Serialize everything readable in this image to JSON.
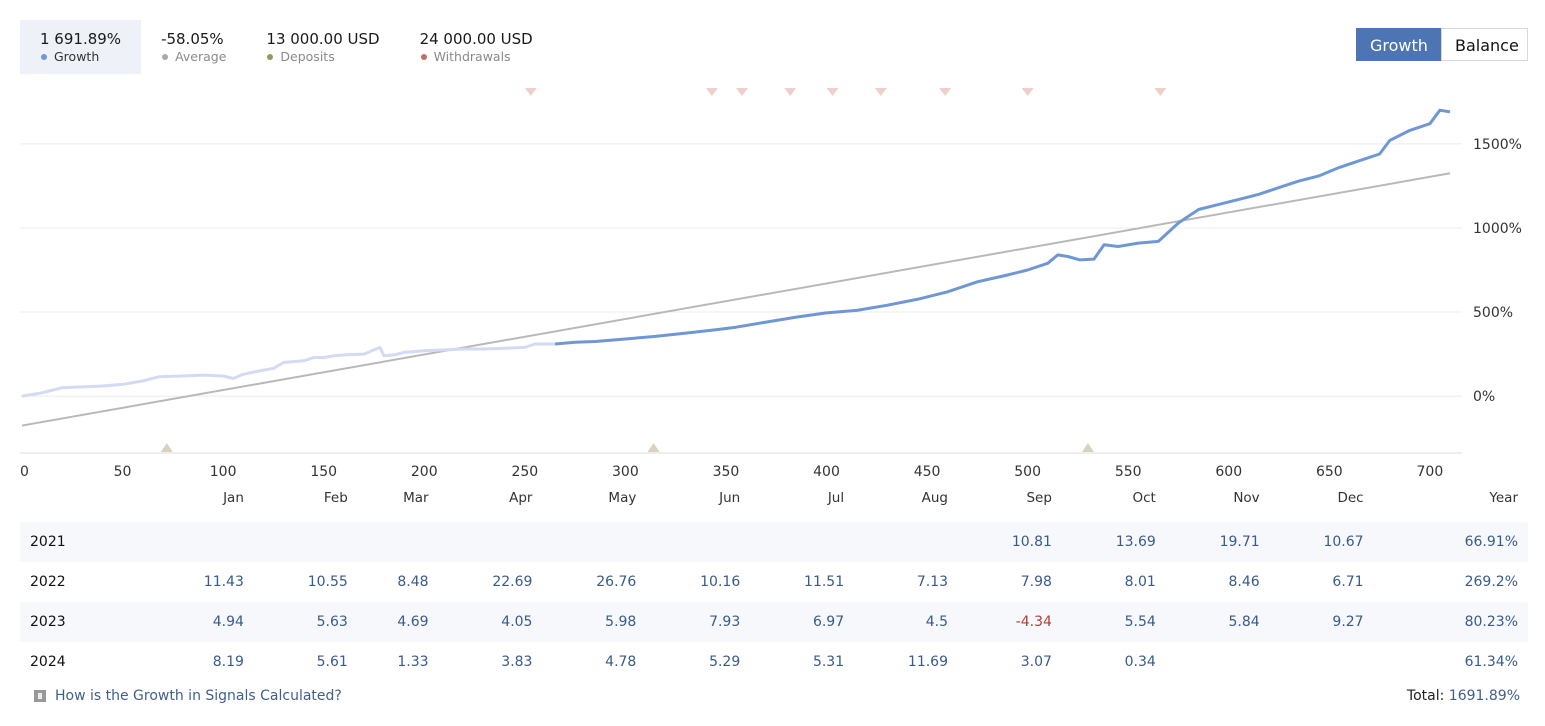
{
  "summary": [
    {
      "value": "1 691.89%",
      "label": "Growth",
      "color": "#6f97d6",
      "active": true
    },
    {
      "value": "-58.05%",
      "label": "Average",
      "color": "#aaaaaa",
      "active": false
    },
    {
      "value": "13 000.00 USD",
      "label": "Deposits",
      "color": "#8aa05a",
      "active": false
    },
    {
      "value": "24 000.00 USD",
      "label": "Withdrawals",
      "color": "#c07060",
      "active": false
    }
  ],
  "toggle": {
    "growth": "Growth",
    "balance": "Balance"
  },
  "chart_data": {
    "type": "line",
    "xlim": [
      0,
      710
    ],
    "ylim": [
      -350,
      1850
    ],
    "x_ticks": [
      0,
      50,
      100,
      150,
      200,
      250,
      300,
      350,
      400,
      450,
      500,
      550,
      600,
      650,
      700
    ],
    "y_ticks": [
      {
        "v": 0,
        "label": "0%"
      },
      {
        "v": 500,
        "label": "500%"
      },
      {
        "v": 1000,
        "label": "1000%"
      },
      {
        "v": 1500,
        "label": "1500%"
      }
    ],
    "growth_series": [
      [
        0,
        0
      ],
      [
        10,
        20
      ],
      [
        20,
        50
      ],
      [
        30,
        55
      ],
      [
        40,
        60
      ],
      [
        50,
        70
      ],
      [
        60,
        90
      ],
      [
        68,
        115
      ],
      [
        80,
        120
      ],
      [
        90,
        125
      ],
      [
        100,
        120
      ],
      [
        105,
        105
      ],
      [
        110,
        130
      ],
      [
        118,
        150
      ],
      [
        125,
        165
      ],
      [
        130,
        200
      ],
      [
        140,
        210
      ],
      [
        145,
        230
      ],
      [
        150,
        230
      ],
      [
        155,
        240
      ],
      [
        160,
        245
      ],
      [
        170,
        250
      ],
      [
        178,
        290
      ],
      [
        180,
        240
      ],
      [
        185,
        245
      ],
      [
        190,
        260
      ],
      [
        200,
        270
      ],
      [
        210,
        275
      ],
      [
        220,
        280
      ],
      [
        230,
        280
      ],
      [
        240,
        285
      ],
      [
        250,
        290
      ],
      [
        255,
        310
      ],
      [
        265,
        310
      ],
      [
        275,
        320
      ],
      [
        285,
        325
      ],
      [
        300,
        340
      ],
      [
        315,
        355
      ],
      [
        330,
        375
      ],
      [
        345,
        395
      ],
      [
        355,
        410
      ],
      [
        370,
        440
      ],
      [
        385,
        470
      ],
      [
        400,
        495
      ],
      [
        415,
        510
      ],
      [
        430,
        540
      ],
      [
        445,
        575
      ],
      [
        460,
        620
      ],
      [
        475,
        680
      ],
      [
        490,
        720
      ],
      [
        500,
        750
      ],
      [
        510,
        790
      ],
      [
        515,
        840
      ],
      [
        520,
        830
      ],
      [
        526,
        810
      ],
      [
        533,
        815
      ],
      [
        538,
        900
      ],
      [
        545,
        890
      ],
      [
        555,
        910
      ],
      [
        565,
        920
      ],
      [
        575,
        1030
      ],
      [
        585,
        1110
      ],
      [
        595,
        1140
      ],
      [
        605,
        1170
      ],
      [
        615,
        1200
      ],
      [
        625,
        1240
      ],
      [
        635,
        1280
      ],
      [
        645,
        1310
      ],
      [
        655,
        1360
      ],
      [
        665,
        1400
      ],
      [
        675,
        1440
      ],
      [
        680,
        1520
      ],
      [
        690,
        1580
      ],
      [
        700,
        1620
      ],
      [
        705,
        1700
      ],
      [
        710,
        1690
      ]
    ],
    "faded_until_x": 272,
    "average_line": [
      [
        0,
        -175
      ],
      [
        710,
        1325
      ]
    ],
    "deposit_markers_x": [
      72,
      314,
      530
    ],
    "withdrawal_markers_x": [
      253,
      343,
      358,
      382,
      403,
      427,
      459,
      500,
      566
    ],
    "colors": {
      "growth": "#6f97d6",
      "growth_faded": "#d3dbf2",
      "average": "#b8b8b8",
      "deposit": "#d8d3c0",
      "withdrawal": "#eecfcc"
    }
  },
  "table": {
    "headers": [
      "",
      "Jan",
      "Feb",
      "Mar",
      "Apr",
      "May",
      "Jun",
      "Jul",
      "Aug",
      "Sep",
      "Oct",
      "Nov",
      "Dec",
      "Year"
    ],
    "rows": [
      [
        "2021",
        "",
        "",
        "",
        "",
        "",
        "",
        "",
        "",
        "10.81",
        "13.69",
        "19.71",
        "10.67",
        "66.91%"
      ],
      [
        "2022",
        "11.43",
        "10.55",
        "8.48",
        "22.69",
        "26.76",
        "10.16",
        "11.51",
        "7.13",
        "7.98",
        "8.01",
        "8.46",
        "6.71",
        "269.2%"
      ],
      [
        "2023",
        "4.94",
        "5.63",
        "4.69",
        "4.05",
        "5.98",
        "7.93",
        "6.97",
        "4.5",
        "-4.34",
        "5.54",
        "5.84",
        "9.27",
        "80.23%"
      ],
      [
        "2024",
        "8.19",
        "5.61",
        "1.33",
        "3.83",
        "4.78",
        "5.29",
        "5.31",
        "11.69",
        "3.07",
        "0.34",
        "",
        "",
        "61.34%"
      ]
    ]
  },
  "footer": {
    "help_link": "How is the Growth in Signals Calculated?",
    "total_label": "Total:",
    "total_value": "1691.89%"
  }
}
